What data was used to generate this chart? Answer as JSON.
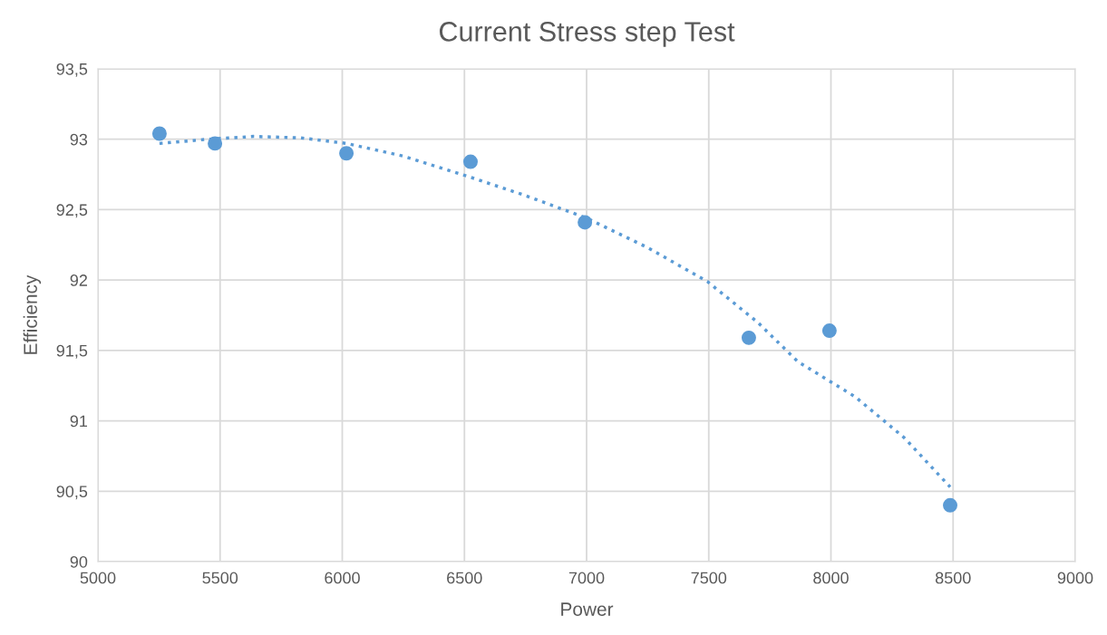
{
  "chart_data": {
    "type": "scatter",
    "title": "Current Stress step Test",
    "xlabel": "Power",
    "ylabel": "Efficiency",
    "series": [
      {
        "color": "#5b9bd5",
        "marker": "circle",
        "x": [
          5252,
          5479,
          6017,
          6525,
          6993,
          7664,
          7994,
          8488
        ],
        "values": [
          93.04,
          92.97,
          92.9,
          92.84,
          92.41,
          91.59,
          91.64,
          90.4
        ]
      },
      {
        "type": "line",
        "color": "#5b9bd5",
        "line_style": "dotted",
        "marker": "none",
        "x": [
          5252,
          5450,
          5638,
          5830,
          6017,
          6250,
          6525,
          6750,
          7000,
          7250,
          7494,
          7700,
          7865,
          8100,
          8300,
          8488
        ],
        "values": [
          92.97,
          93.0,
          93.02,
          93.01,
          92.97,
          92.88,
          92.73,
          92.6,
          92.44,
          92.23,
          91.99,
          91.7,
          91.42,
          91.17,
          90.88,
          90.53
        ]
      }
    ],
    "xlim": [
      5000,
      9000
    ],
    "xticks": [
      5000,
      5500,
      6000,
      6500,
      7000,
      7500,
      8000,
      8500,
      9000
    ],
    "ylim": [
      90,
      93.5
    ],
    "yticks": [
      90,
      {
        "value": 90.5,
        "label": "90,5"
      },
      91,
      {
        "value": 91.5,
        "label": "91,5"
      },
      92,
      {
        "value": 92.5,
        "label": "92,5"
      },
      93,
      {
        "value": 93.5,
        "label": "93,5"
      }
    ],
    "grid": true,
    "legend": false
  }
}
